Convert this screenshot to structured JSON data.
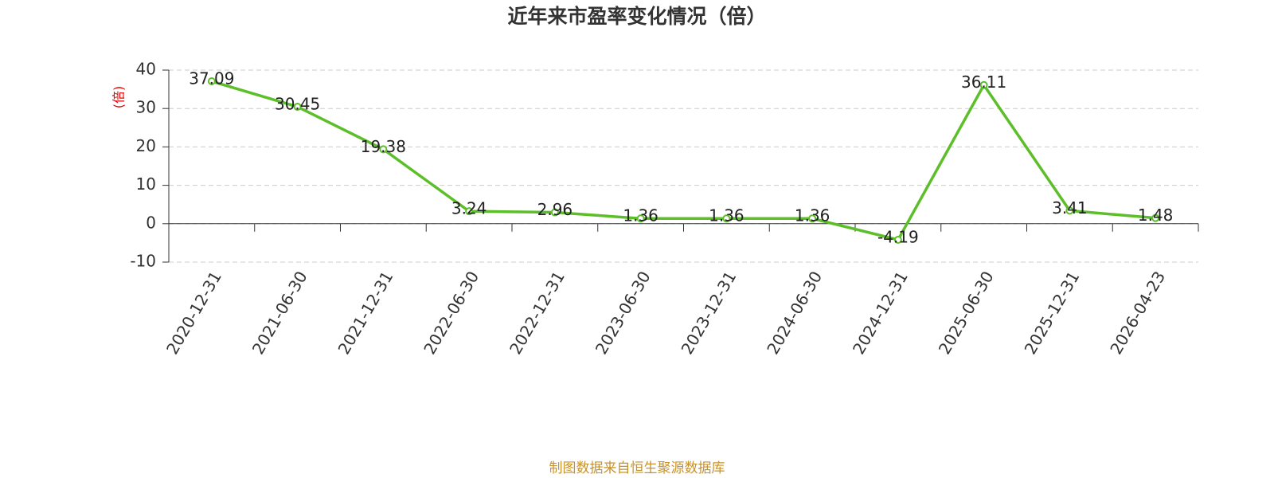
{
  "chart_data": {
    "type": "line",
    "title": "近年来市盈率变化情况（倍）",
    "y_label": "(倍)",
    "source": "制图数据来自恒生聚源数据库",
    "categories": [
      "2020-12-31",
      "2021-06-30",
      "2021-12-31",
      "2022-06-30",
      "2022-12-31",
      "2023-06-30",
      "2023-12-31",
      "2024-06-30",
      "2024-12-31",
      "2025-06-30",
      "2025-12-31",
      "2026-04-23"
    ],
    "values": [
      37.09,
      30.45,
      19.38,
      3.24,
      2.96,
      1.36,
      1.36,
      1.36,
      -4.19,
      36.11,
      3.41,
      1.48
    ],
    "color": "#5cbf2a",
    "ylim": [
      -10,
      40
    ],
    "yticks": [
      -10,
      0,
      10,
      20,
      30,
      40
    ],
    "grid": true
  }
}
